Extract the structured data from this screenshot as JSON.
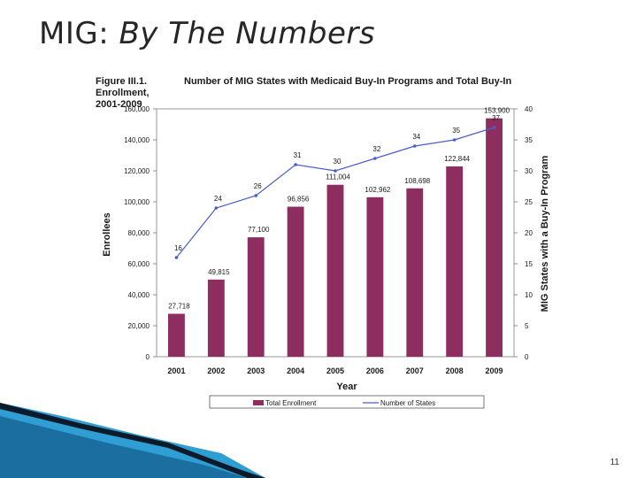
{
  "slide": {
    "title_prefix": "MIG:",
    "title_emphasis": "By The Numbers",
    "page_number": "11"
  },
  "colors": {
    "bar": "#8e2d5f",
    "line": "#4a5ec8",
    "text": "#1a1a1a",
    "title": "#262626",
    "accent_dark": "#0d3b5c",
    "accent_light": "#2f9ed3"
  },
  "chart_data": {
    "type": "bar",
    "figure_label": "Figure III.1.",
    "title": "Number of MIG States with Medicaid Buy-In Programs and Total Buy-In Enrollment, 2001-2009",
    "title_line1": "Number of MIG States with Medicaid Buy-In Programs and Total Buy-In Enrollment,",
    "title_line2": "2001-2009",
    "xlabel": "Year",
    "ylabel": "Enrollees",
    "y2label": "MIG States with a Buy-In Program",
    "categories": [
      "2001",
      "2002",
      "2003",
      "2004",
      "2005",
      "2006",
      "2007",
      "2008",
      "2009"
    ],
    "ylim": [
      0,
      160000
    ],
    "y_ticks": [
      0,
      20000,
      40000,
      60000,
      80000,
      100000,
      120000,
      140000,
      160000
    ],
    "y_tick_labels": [
      "0",
      "20,000",
      "40,000",
      "60,000",
      "80,000",
      "100,000",
      "120,000",
      "140,000",
      "160,000"
    ],
    "y2lim": [
      0,
      40
    ],
    "y2_ticks": [
      0,
      5,
      10,
      15,
      20,
      25,
      30,
      35,
      40
    ],
    "y2_tick_labels": [
      "0",
      "5",
      "10",
      "15",
      "20",
      "25",
      "30",
      "35",
      "40"
    ],
    "series": [
      {
        "name": "Total Enrollment",
        "kind": "bar",
        "axis": "left",
        "values": [
          27718,
          49815,
          77100,
          96856,
          111004,
          102962,
          108698,
          122844,
          153900
        ],
        "labels": [
          "27,718",
          "49,815",
          "77,100",
          "96,856",
          "111,004",
          "102,962",
          "108,698",
          "122,844",
          "153,900"
        ]
      },
      {
        "name": "Number of States",
        "kind": "line",
        "axis": "right",
        "values": [
          16,
          24,
          26,
          31,
          30,
          32,
          34,
          35,
          37
        ],
        "labels": [
          "16",
          "24",
          "26",
          "31",
          "30",
          "32",
          "34",
          "35",
          "37"
        ]
      }
    ],
    "legend": [
      "Total Enrollment",
      "Number of States"
    ],
    "legend_position": "bottom"
  }
}
